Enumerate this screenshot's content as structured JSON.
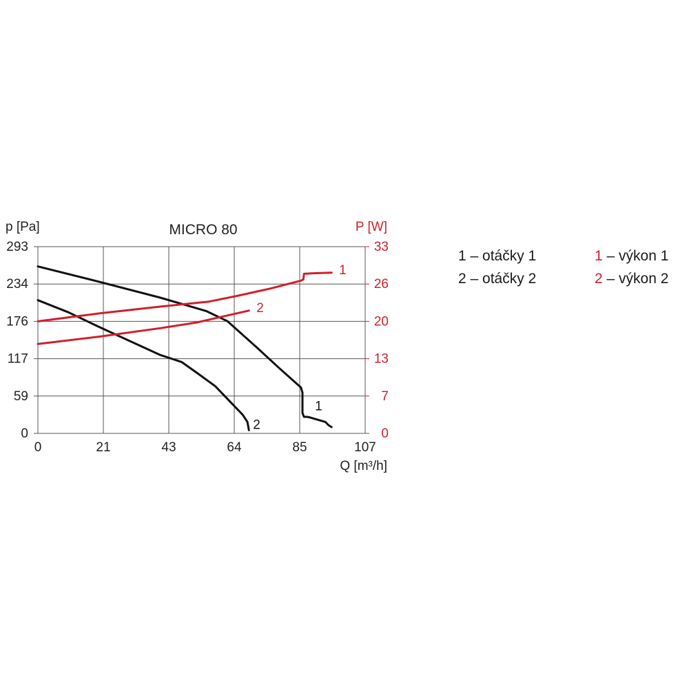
{
  "chart_data": {
    "type": "line",
    "title": "MICRO 80",
    "xlabel": "Q [m³/h]",
    "ylabel_left": "p [Pa]",
    "ylabel_right": "P [W]",
    "xlim": [
      0,
      107
    ],
    "ylim_left": [
      0,
      293
    ],
    "ylim_right": [
      0,
      33
    ],
    "xticks": [
      "0",
      "21",
      "43",
      "64",
      "85",
      "107"
    ],
    "yticks_left": [
      "0",
      "59",
      "117",
      "176",
      "234",
      "293"
    ],
    "yticks_right": [
      "0",
      "7",
      "13",
      "20",
      "26",
      "33"
    ],
    "grid": true,
    "colors": {
      "pressure": "#111111",
      "power": "#d0202a",
      "grid": "#555555"
    },
    "series": [
      {
        "name": "1",
        "quantity": "p",
        "axis": "left",
        "x": [
          0,
          20,
          40,
          55,
          62,
          72,
          79,
          86,
          86.5,
          86.5,
          87,
          88,
          89,
          94,
          95,
          96
        ],
        "y": [
          262,
          238,
          213,
          192,
          176,
          133,
          102,
          72,
          64,
          32,
          26,
          26,
          25,
          18,
          13,
          10
        ]
      },
      {
        "name": "2",
        "quantity": "p",
        "axis": "left",
        "x": [
          0,
          10,
          20,
          30,
          40,
          47,
          52,
          58,
          64,
          67,
          68.5,
          69
        ],
        "y": [
          209,
          190,
          167,
          145,
          123,
          112,
          95,
          74,
          44,
          29,
          18,
          5
        ]
      },
      {
        "name": "1",
        "quantity": "P",
        "axis": "right",
        "x": [
          0,
          20,
          40,
          56,
          66,
          76,
          86,
          86.8,
          87,
          90,
          96
        ],
        "y": [
          19.8,
          21.2,
          22.4,
          23.3,
          24.4,
          25.6,
          27,
          27.2,
          28.2,
          28.3,
          28.4
        ]
      },
      {
        "name": "2",
        "quantity": "P",
        "axis": "right",
        "x": [
          0,
          20,
          40,
          52,
          60,
          69
        ],
        "y": [
          15.8,
          17.1,
          18.6,
          19.6,
          20.6,
          21.7
        ]
      }
    ],
    "legend": {
      "placement": "right",
      "items": [
        {
          "mark": "1",
          "text": " – otáčky 1",
          "color": "#111111"
        },
        {
          "mark": "2",
          "text": " – otáčky 2",
          "color": "#111111"
        },
        {
          "mark": "1",
          "text": " – výkon 1",
          "color": "#d0202a"
        },
        {
          "mark": "2",
          "text": " – výkon 2",
          "color": "#d0202a"
        }
      ]
    }
  }
}
